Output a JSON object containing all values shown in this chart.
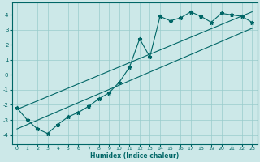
{
  "title": "",
  "xlabel": "Humidex (Indice chaleur)",
  "ylabel": "",
  "background_color": "#cce8e8",
  "grid_color": "#99cccc",
  "line_color": "#006666",
  "xlim": [
    -0.5,
    23.5
  ],
  "ylim": [
    -4.6,
    4.8
  ],
  "xticks": [
    0,
    1,
    2,
    3,
    4,
    5,
    6,
    7,
    8,
    9,
    10,
    11,
    12,
    13,
    14,
    15,
    16,
    17,
    18,
    19,
    20,
    21,
    22,
    23
  ],
  "yticks": [
    -4,
    -3,
    -2,
    -1,
    0,
    1,
    2,
    3,
    4
  ],
  "series1_x": [
    0,
    1,
    2,
    3,
    4,
    5,
    6,
    7,
    8,
    9,
    10,
    11,
    12,
    13,
    14,
    15,
    16,
    17,
    18,
    19,
    20,
    21,
    22,
    23
  ],
  "series1_y": [
    -2.2,
    -3.0,
    -3.6,
    -3.9,
    -3.3,
    -2.8,
    -2.5,
    -2.1,
    -1.6,
    -1.2,
    -0.5,
    0.5,
    2.4,
    1.2,
    3.9,
    3.6,
    3.8,
    4.2,
    3.9,
    3.5,
    4.1,
    4.0,
    3.9,
    3.5
  ],
  "line1_x": [
    0,
    23
  ],
  "line1_y": [
    -3.6,
    3.1
  ],
  "line2_x": [
    0,
    23
  ],
  "line2_y": [
    -2.3,
    4.2
  ]
}
